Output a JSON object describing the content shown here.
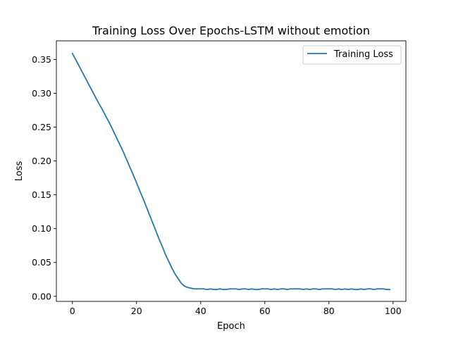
{
  "chart_data": {
    "type": "line",
    "title": "Training Loss Over Epochs-LSTM without emotion",
    "xlabel": "Epoch",
    "ylabel": "Loss",
    "xlim": [
      -5,
      104
    ],
    "ylim": [
      -0.0075,
      0.3775
    ],
    "xticks": [
      0,
      20,
      40,
      60,
      80,
      100
    ],
    "yticks": [
      0.0,
      0.05,
      0.1,
      0.15,
      0.2,
      0.25,
      0.3,
      0.35
    ],
    "ytick_labels": [
      "0.00",
      "0.05",
      "0.10",
      "0.15",
      "0.20",
      "0.25",
      "0.30",
      "0.35"
    ],
    "grid": false,
    "legend_position": "top-right",
    "colors": {
      "series": "#1f77b4"
    },
    "series": [
      {
        "name": "Training Loss",
        "x": [
          0,
          1,
          2,
          3,
          4,
          5,
          6,
          7,
          8,
          9,
          10,
          11,
          12,
          13,
          14,
          15,
          16,
          17,
          18,
          19,
          20,
          21,
          22,
          23,
          24,
          25,
          26,
          27,
          28,
          29,
          30,
          31,
          32,
          33,
          34,
          35,
          36,
          37,
          38,
          39,
          40,
          41,
          42,
          43,
          44,
          45,
          46,
          47,
          48,
          49,
          50,
          51,
          52,
          53,
          54,
          55,
          56,
          57,
          58,
          59,
          60,
          61,
          62,
          63,
          64,
          65,
          66,
          67,
          68,
          69,
          70,
          71,
          72,
          73,
          74,
          75,
          76,
          77,
          78,
          79,
          80,
          81,
          82,
          83,
          84,
          85,
          86,
          87,
          88,
          89,
          90,
          91,
          92,
          93,
          94,
          95,
          96,
          97,
          98,
          99
        ],
        "y": [
          0.359,
          0.35,
          0.341,
          0.332,
          0.323,
          0.314,
          0.305,
          0.296,
          0.287,
          0.279,
          0.27,
          0.261,
          0.252,
          0.242,
          0.232,
          0.222,
          0.212,
          0.201,
          0.19,
          0.179,
          0.168,
          0.156,
          0.145,
          0.133,
          0.121,
          0.109,
          0.097,
          0.085,
          0.074,
          0.062,
          0.052,
          0.042,
          0.033,
          0.026,
          0.019,
          0.015,
          0.013,
          0.012,
          0.011,
          0.011,
          0.011,
          0.011,
          0.01,
          0.011,
          0.01,
          0.01,
          0.011,
          0.01,
          0.01,
          0.011,
          0.011,
          0.011,
          0.01,
          0.011,
          0.011,
          0.01,
          0.011,
          0.01,
          0.01,
          0.011,
          0.011,
          0.011,
          0.01,
          0.011,
          0.01,
          0.011,
          0.011,
          0.01,
          0.011,
          0.011,
          0.011,
          0.011,
          0.01,
          0.011,
          0.01,
          0.011,
          0.011,
          0.01,
          0.011,
          0.011,
          0.011,
          0.011,
          0.01,
          0.011,
          0.01,
          0.011,
          0.01,
          0.011,
          0.01,
          0.01,
          0.011,
          0.01,
          0.011,
          0.011,
          0.01,
          0.011,
          0.011,
          0.011,
          0.01,
          0.01
        ]
      }
    ]
  }
}
